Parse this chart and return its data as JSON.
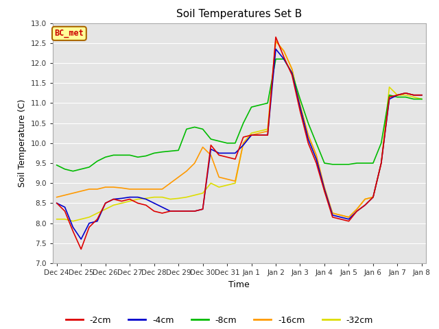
{
  "title": "Soil Temperatures Set B",
  "xlabel": "Time",
  "ylabel": "Soil Temperature (C)",
  "ylim": [
    7.0,
    13.0
  ],
  "yticks": [
    7.0,
    7.5,
    8.0,
    8.5,
    9.0,
    9.5,
    10.0,
    10.5,
    11.0,
    11.5,
    12.0,
    12.5,
    13.0
  ],
  "background_color": "#e5e5e5",
  "grid_color": "#ffffff",
  "annotation_text": "BC_met",
  "annotation_bg": "#ffff99",
  "annotation_border": "#aa6600",
  "annotation_text_color": "#cc0000",
  "series": {
    "-2cm": {
      "color": "#dd0000",
      "zorder": 5
    },
    "-4cm": {
      "color": "#0000cc",
      "zorder": 4
    },
    "-8cm": {
      "color": "#00bb00",
      "zorder": 3
    },
    "-16cm": {
      "color": "#ff9900",
      "zorder": 2
    },
    "-32cm": {
      "color": "#dddd00",
      "zorder": 1
    }
  },
  "date_labels": [
    "Dec 24",
    "Dec 25",
    "Dec 26",
    "Dec 27",
    "Dec 28",
    "Dec 29",
    "Dec 30",
    "Dec 31",
    "Jan 1",
    "Jan 2",
    "Jan 3",
    "Jan 4",
    "Jan 5",
    "Jan 6",
    "Jan 7",
    "Jan 8"
  ],
  "tick_x_values": [
    0,
    3,
    6,
    9,
    12,
    15,
    18,
    21,
    24,
    27,
    30,
    33,
    36,
    39,
    42,
    45
  ],
  "data": {
    "-2cm": [
      8.5,
      8.3,
      7.8,
      7.35,
      7.9,
      8.1,
      8.5,
      8.6,
      8.55,
      8.6,
      8.5,
      8.45,
      8.3,
      8.25,
      8.3,
      8.3,
      8.3,
      8.3,
      8.35,
      9.95,
      9.7,
      9.65,
      9.6,
      10.15,
      10.2,
      10.2,
      10.2,
      12.65,
      12.15,
      11.7,
      10.8,
      10.0,
      9.5,
      8.8,
      8.15,
      8.1,
      8.05,
      8.3,
      8.45,
      8.65,
      9.5,
      11.15,
      11.2,
      11.25,
      11.2,
      11.2
    ],
    "-4cm": [
      8.5,
      8.4,
      7.9,
      7.6,
      8.0,
      8.05,
      8.5,
      8.6,
      8.62,
      8.65,
      8.65,
      8.6,
      8.5,
      8.4,
      8.3,
      8.3,
      8.3,
      8.3,
      8.35,
      9.85,
      9.75,
      9.75,
      9.75,
      9.95,
      10.2,
      10.2,
      10.2,
      12.35,
      12.1,
      11.75,
      10.9,
      10.1,
      9.6,
      8.85,
      8.2,
      8.15,
      8.1,
      8.3,
      8.45,
      8.65,
      9.5,
      11.1,
      11.2,
      11.25,
      11.2,
      11.2
    ],
    "-8cm": [
      9.45,
      9.35,
      9.3,
      9.35,
      9.4,
      9.55,
      9.65,
      9.7,
      9.7,
      9.7,
      9.65,
      9.68,
      9.75,
      9.78,
      9.8,
      9.82,
      10.35,
      10.4,
      10.35,
      10.1,
      10.05,
      10.0,
      10.0,
      10.5,
      10.9,
      10.95,
      11.0,
      12.1,
      12.1,
      11.75,
      11.1,
      10.5,
      10.0,
      9.5,
      9.47,
      9.47,
      9.47,
      9.5,
      9.5,
      9.5,
      10.0,
      11.2,
      11.15,
      11.15,
      11.1,
      11.1
    ],
    "-16cm": [
      8.65,
      8.7,
      8.75,
      8.8,
      8.85,
      8.85,
      8.9,
      8.9,
      8.88,
      8.85,
      8.85,
      8.85,
      8.85,
      8.85,
      9.0,
      9.15,
      9.3,
      9.5,
      9.9,
      9.7,
      9.15,
      9.1,
      9.05,
      10.0,
      10.2,
      10.25,
      10.3,
      12.55,
      12.3,
      11.85,
      10.95,
      10.2,
      9.7,
      8.9,
      8.25,
      8.2,
      8.15,
      8.35,
      8.6,
      8.65,
      9.5,
      11.15,
      11.2,
      11.25,
      11.2,
      11.2
    ],
    "-32cm": [
      8.1,
      8.1,
      8.05,
      8.1,
      8.15,
      8.25,
      8.35,
      8.45,
      8.5,
      8.55,
      8.6,
      8.62,
      8.65,
      8.65,
      8.6,
      8.62,
      8.65,
      8.7,
      8.75,
      9.0,
      8.9,
      8.95,
      9.0,
      10.0,
      10.25,
      10.3,
      10.35,
      12.55,
      12.3,
      11.85,
      10.95,
      10.2,
      9.7,
      8.8,
      8.25,
      8.2,
      8.15,
      8.35,
      8.6,
      8.65,
      9.5,
      11.4,
      11.2,
      11.2,
      11.15,
      11.1
    ]
  },
  "n_points": 46,
  "figsize": [
    6.4,
    4.8
  ],
  "dpi": 100
}
